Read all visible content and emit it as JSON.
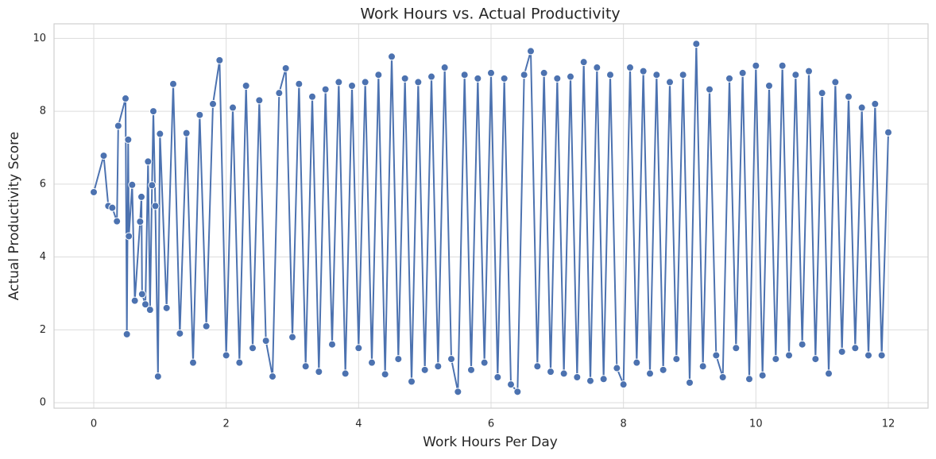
{
  "chart_data": {
    "type": "line",
    "title": "Work Hours vs. Actual Productivity",
    "x_label": "Work Hours Per Day",
    "y_label": "Actual Productivity Score",
    "color": "#4c72b0",
    "grid": true,
    "markers": true,
    "xlim": [
      -0.6,
      12.6
    ],
    "ylim": [
      -0.15,
      10.4
    ],
    "xticks": [
      0,
      2,
      4,
      6,
      8,
      10,
      12
    ],
    "yticks": [
      0,
      2,
      4,
      6,
      8,
      10
    ],
    "x": [
      0,
      0.15,
      0.22,
      0.28,
      0.35,
      0.37,
      0.48,
      0.5,
      0.52,
      0.53,
      0.58,
      0.62,
      0.7,
      0.72,
      0.73,
      0.78,
      0.82,
      0.85,
      0.88,
      0.9,
      0.93,
      0.97,
      1.0,
      1.1,
      1.2,
      1.3,
      1.4,
      1.5,
      1.6,
      1.7,
      1.8,
      1.9,
      2.0,
      2.1,
      2.2,
      2.3,
      2.4,
      2.5,
      2.6,
      2.7,
      2.8,
      2.9,
      3.0,
      3.1,
      3.2,
      3.3,
      3.4,
      3.5,
      3.6,
      3.7,
      3.8,
      3.9,
      4.0,
      4.1,
      4.2,
      4.3,
      4.4,
      4.5,
      4.6,
      4.7,
      4.8,
      4.9,
      5.0,
      5.1,
      5.2,
      5.3,
      5.4,
      5.5,
      5.6,
      5.7,
      5.8,
      5.9,
      6.0,
      6.1,
      6.2,
      6.3,
      6.4,
      6.5,
      6.6,
      6.7,
      6.8,
      6.9,
      7.0,
      7.1,
      7.2,
      7.3,
      7.4,
      7.5,
      7.6,
      7.7,
      7.8,
      7.9,
      8.0,
      8.1,
      8.2,
      8.3,
      8.4,
      8.5,
      8.6,
      8.7,
      8.8,
      8.9,
      9.0,
      9.1,
      9.2,
      9.3,
      9.4,
      9.5,
      9.6,
      9.7,
      9.8,
      9.9,
      10.0,
      10.1,
      10.2,
      10.3,
      10.4,
      10.5,
      10.6,
      10.7,
      10.8,
      10.9,
      11.0,
      11.1,
      11.2,
      11.3,
      11.4,
      11.5,
      11.6,
      11.7,
      11.8,
      11.9,
      12.0
    ],
    "values": [
      5.78,
      6.78,
      5.4,
      5.35,
      4.98,
      7.6,
      8.35,
      1.88,
      7.22,
      4.57,
      5.98,
      2.8,
      4.97,
      5.65,
      2.98,
      2.7,
      6.62,
      2.55,
      5.97,
      8.0,
      5.4,
      0.72,
      7.38,
      2.6,
      8.75,
      1.9,
      7.4,
      1.1,
      7.9,
      2.1,
      8.2,
      9.4,
      1.3,
      8.1,
      1.1,
      8.7,
      1.5,
      8.3,
      1.7,
      0.72,
      8.5,
      9.18,
      1.8,
      8.75,
      1.0,
      8.4,
      0.85,
      8.6,
      1.6,
      8.8,
      0.8,
      8.7,
      1.5,
      8.8,
      1.1,
      9.0,
      0.78,
      9.5,
      1.2,
      8.9,
      0.58,
      8.8,
      0.9,
      8.95,
      1.0,
      9.2,
      1.2,
      0.3,
      9.0,
      0.9,
      8.9,
      1.1,
      9.05,
      0.7,
      8.9,
      0.5,
      0.3,
      9.0,
      9.65,
      1.0,
      9.05,
      0.85,
      8.9,
      0.8,
      8.95,
      0.7,
      9.35,
      0.6,
      9.2,
      0.65,
      9.0,
      0.95,
      0.5,
      9.2,
      1.1,
      9.1,
      0.8,
      9.0,
      0.9,
      8.8,
      1.2,
      9.0,
      0.55,
      9.85,
      1.0,
      8.6,
      1.3,
      0.7,
      8.9,
      1.5,
      9.05,
      0.65,
      9.25,
      0.75,
      8.7,
      1.2,
      9.25,
      1.3,
      9.0,
      1.6,
      9.1,
      1.2,
      8.5,
      0.8,
      8.8,
      1.4,
      8.4,
      1.5,
      8.1,
      1.3,
      8.2,
      1.3,
      7.42
    ]
  }
}
